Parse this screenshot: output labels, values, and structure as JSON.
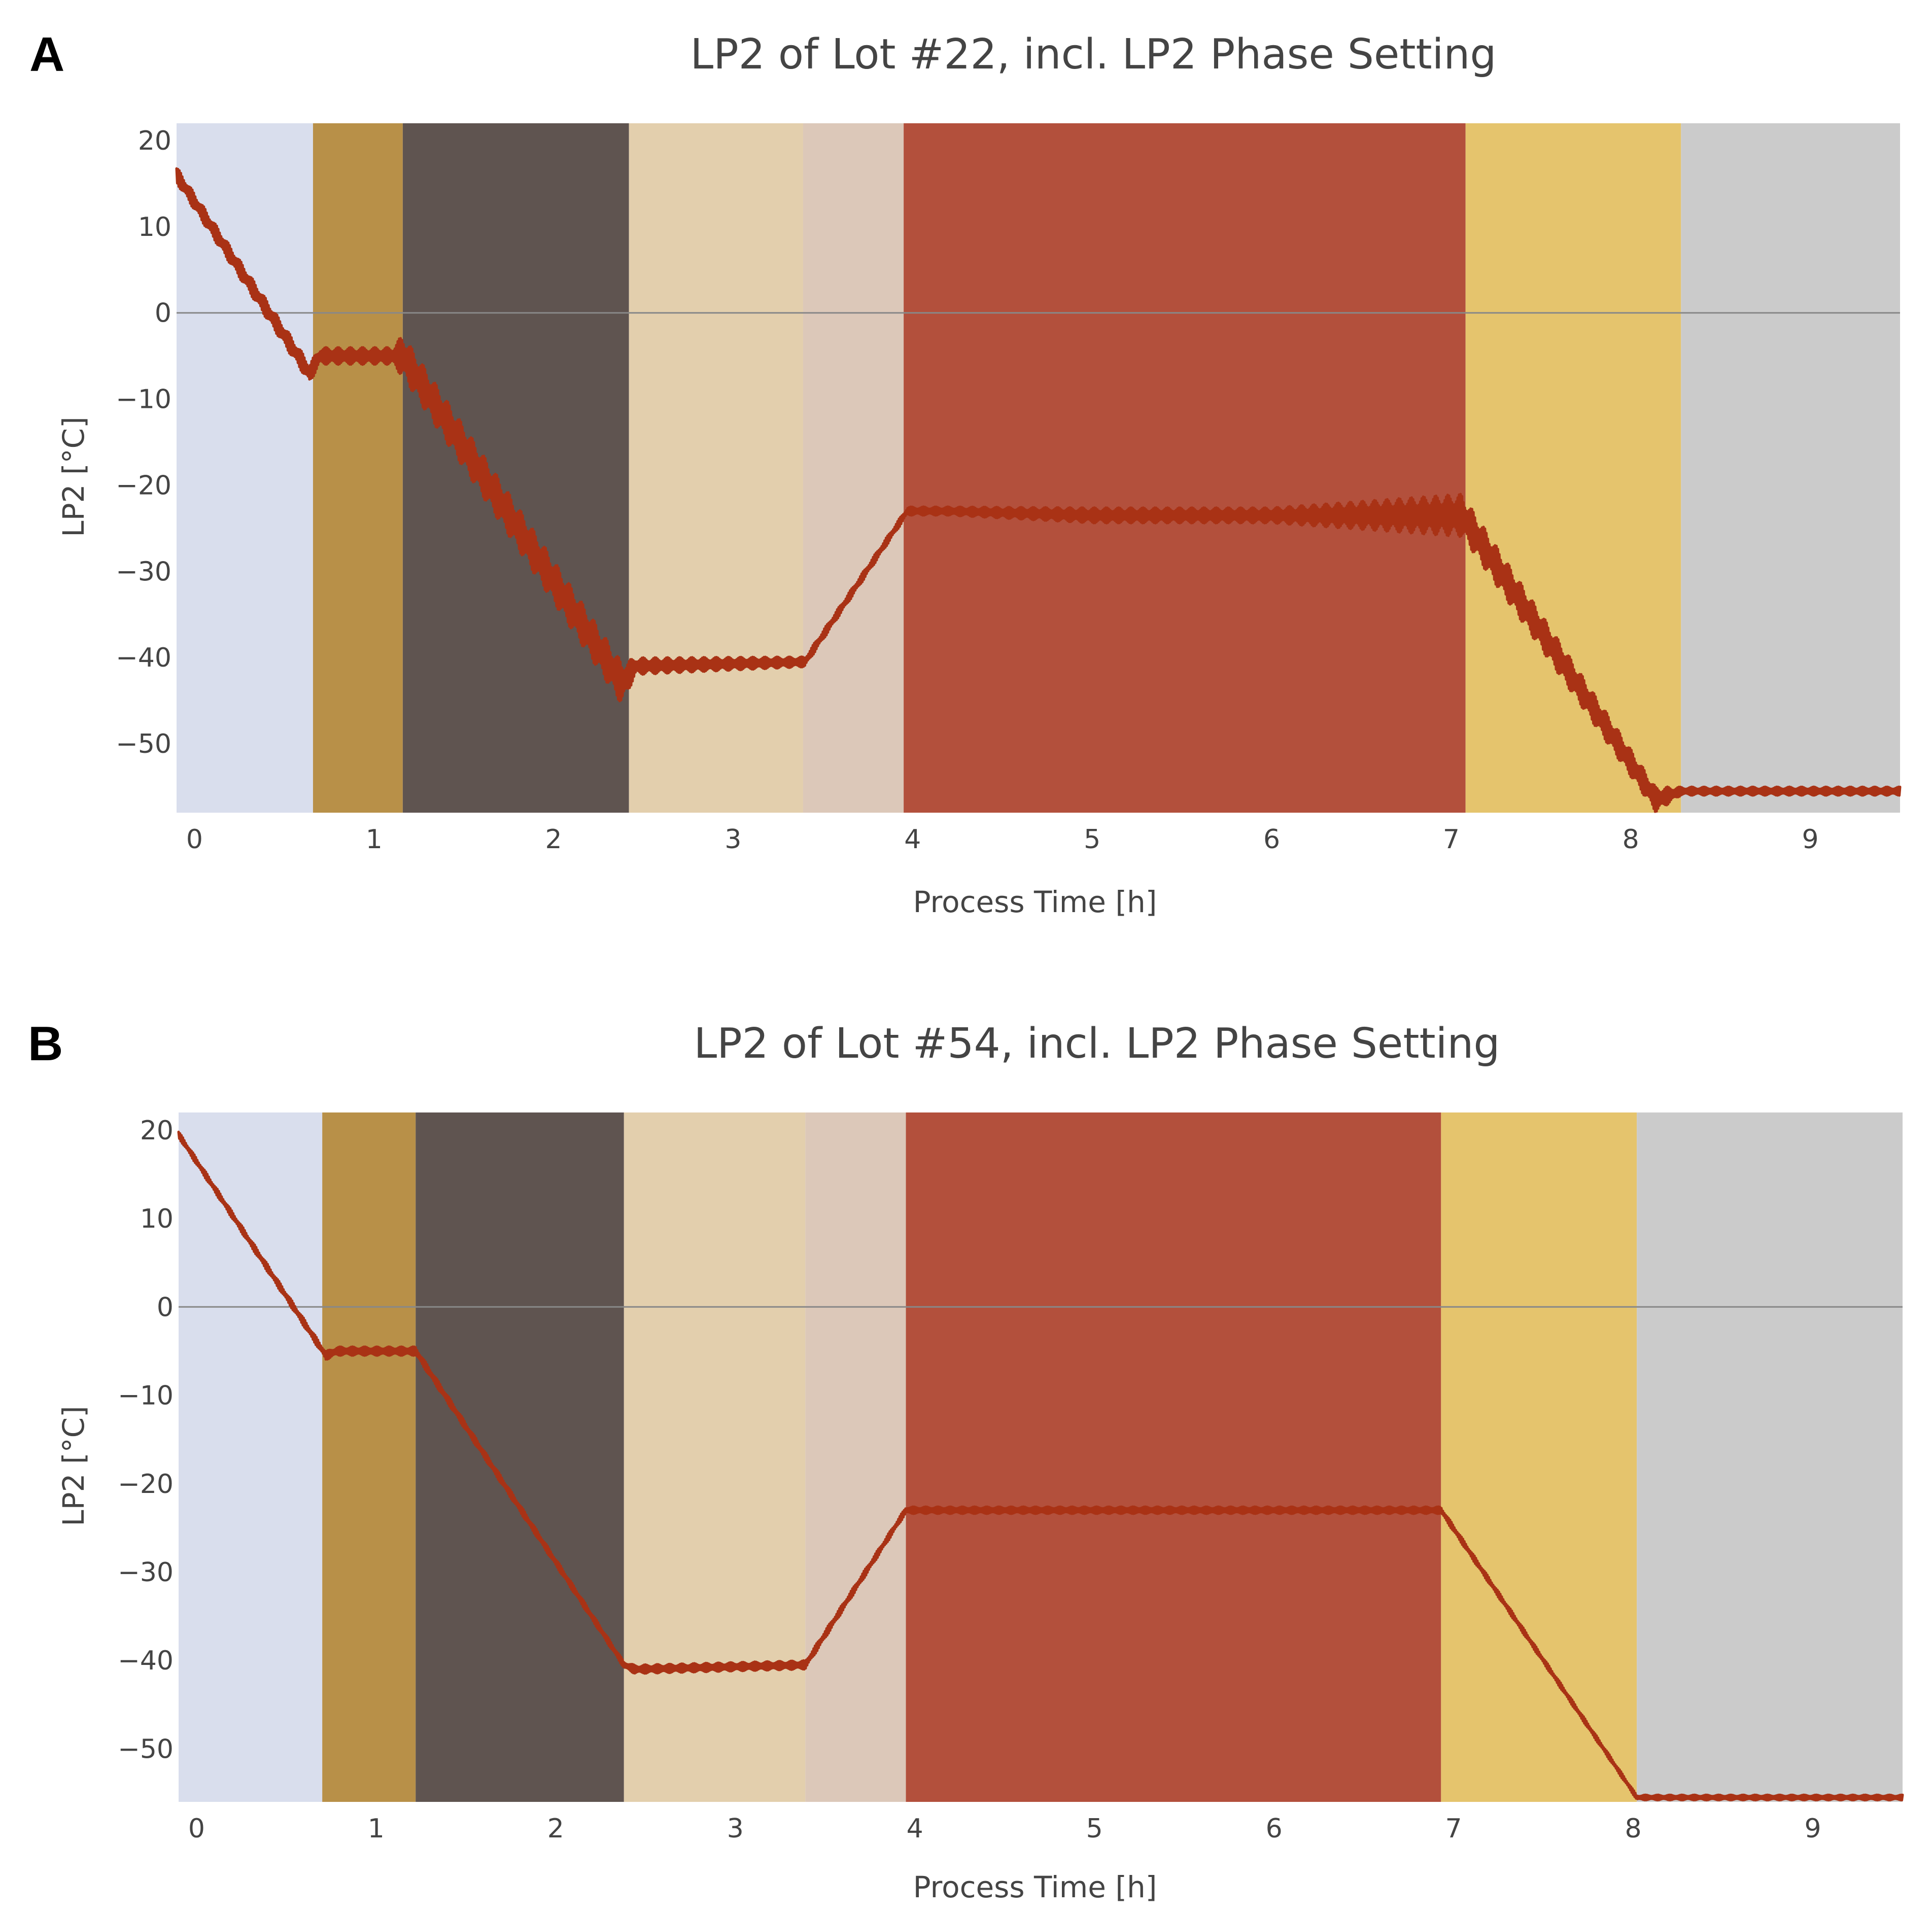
{
  "chart_data": [
    {
      "type": "line",
      "panel_label": "A",
      "title": "LP2 of Lot #22, incl. LP2 Phase Setting",
      "xlabel": "Process Time [h]",
      "ylabel": "LP2 [°C]",
      "xlim": [
        -0.1,
        9.5
      ],
      "ylim": [
        -58,
        22
      ],
      "xticks": [
        0,
        1,
        2,
        3,
        4,
        5,
        6,
        7,
        8,
        9
      ],
      "yticks": [
        20,
        10,
        0,
        -10,
        -20,
        -30,
        -40,
        -50
      ],
      "phases": [
        {
          "start": -0.1,
          "end": 0.66,
          "color": "#d9deed"
        },
        {
          "start": 0.66,
          "end": 1.16,
          "color": "#b89048"
        },
        {
          "start": 1.16,
          "end": 2.42,
          "color": "#5f5450"
        },
        {
          "start": 2.42,
          "end": 3.39,
          "color": "#e3cfad"
        },
        {
          "start": 3.39,
          "end": 3.95,
          "color": "#dcc8b9"
        },
        {
          "start": 3.95,
          "end": 7.08,
          "color": "#b3503c"
        },
        {
          "start": 7.08,
          "end": 8.28,
          "color": "#e5c46d"
        },
        {
          "start": 8.28,
          "end": 9.5,
          "color": "#cbcbcb"
        }
      ],
      "series": [
        {
          "name": "LP2",
          "color": "#a93215",
          "x": [
            -0.1,
            0.64,
            0.7,
            1.1,
            1.16,
            2.38,
            2.46,
            3.4,
            3.97,
            4.2,
            5.0,
            6.0,
            7.06,
            8.14,
            8.28,
            9.5
          ],
          "y": [
            16,
            -7,
            -5,
            -5,
            -5,
            -43,
            -41,
            -40.5,
            -23,
            -23,
            -23.5,
            -23.5,
            -23.5,
            -56.5,
            -55.5,
            -55.5
          ],
          "noise": [
            1.0,
            1.2,
            1.0,
            1.0,
            2.5,
            2.5,
            1.0,
            0.6,
            0.5,
            0.5,
            0.9,
            0.9,
            2.5,
            1.5,
            0.5,
            0.5
          ]
        }
      ]
    },
    {
      "type": "line",
      "panel_label": "B",
      "title": "LP2 of Lot #54, incl. LP2 Phase Setting",
      "xlabel": "Process Time [h]",
      "ylabel": "LP2 [°C]",
      "xlim": [
        -0.1,
        9.5
      ],
      "ylim": [
        -56,
        22
      ],
      "xticks": [
        0,
        1,
        2,
        3,
        4,
        5,
        6,
        7,
        8,
        9
      ],
      "yticks": [
        20,
        10,
        0,
        -10,
        -20,
        -30,
        -40,
        -50
      ],
      "phases": [
        {
          "start": -0.1,
          "end": 0.7,
          "color": "#d9deed"
        },
        {
          "start": 0.7,
          "end": 1.22,
          "color": "#b89048"
        },
        {
          "start": 1.22,
          "end": 2.38,
          "color": "#5f5450"
        },
        {
          "start": 2.38,
          "end": 3.39,
          "color": "#e3cfad"
        },
        {
          "start": 3.39,
          "end": 3.95,
          "color": "#dcc8b9"
        },
        {
          "start": 3.95,
          "end": 6.93,
          "color": "#b3503c"
        },
        {
          "start": 6.93,
          "end": 8.02,
          "color": "#e5c46d"
        },
        {
          "start": 8.02,
          "end": 9.5,
          "color": "#cbcbcb"
        }
      ],
      "series": [
        {
          "name": "LP2",
          "color": "#a93215",
          "x": [
            -0.1,
            0.72,
            0.78,
            1.22,
            2.38,
            2.44,
            3.39,
            3.95,
            4.2,
            5.0,
            6.0,
            6.93,
            8.02,
            8.06,
            9.5
          ],
          "y": [
            19.5,
            -5.5,
            -5,
            -5,
            -40.5,
            -41,
            -40.5,
            -23,
            -23,
            -23,
            -23,
            -23,
            -55.5,
            -55.5,
            -55.5
          ],
          "noise": [
            0.4,
            0.5,
            0.5,
            0.5,
            0.4,
            0.5,
            0.5,
            0.4,
            0.4,
            0.4,
            0.4,
            0.4,
            0.3,
            0.3,
            0.3
          ]
        }
      ]
    }
  ]
}
